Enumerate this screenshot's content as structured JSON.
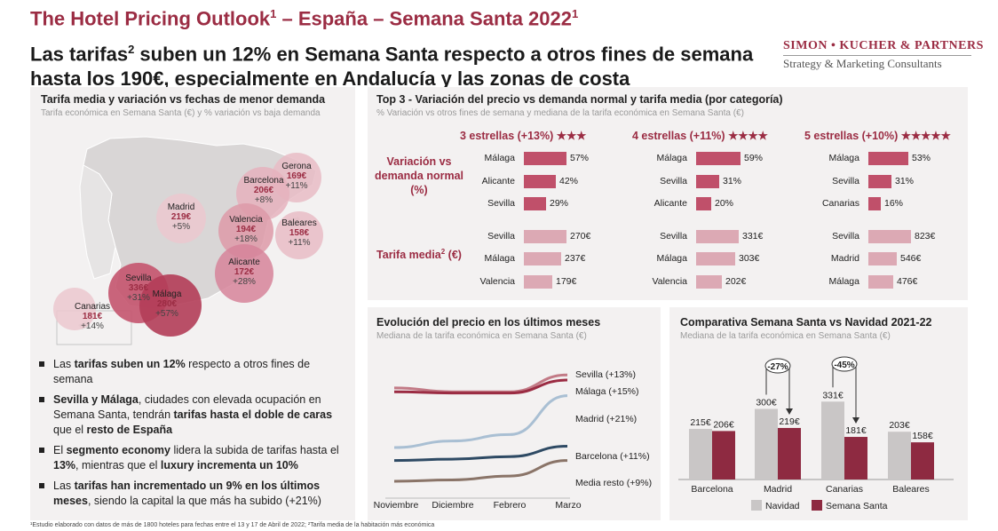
{
  "header": {
    "title_main": "The Hotel Pricing Outlook",
    "title_sup1": "1",
    "title_rest": " – España – Semana Santa 2022",
    "title_sup2": "1",
    "subtitle_part1": "Las tarifas",
    "subtitle_sup": "2",
    "subtitle_part2": " suben un 12% en Semana Santa respecto a otros fines de semana hasta los 190€, especialmente en Andalucía y las zonas de costa",
    "logo_line1": "SIMON • KUCHER & PARTNERS",
    "logo_line2": "Strategy & Marketing Consultants"
  },
  "map_panel": {
    "title": "Tarifa media y variación vs fechas de menor demanda",
    "subtitle": "Tarifa económica en Semana Santa (€) y % variación vs baja demanda",
    "cities": [
      {
        "name": "Gerona",
        "price": "169€",
        "var": "+11%"
      },
      {
        "name": "Barcelona",
        "price": "206€",
        "var": "+8%"
      },
      {
        "name": "Madrid",
        "price": "219€",
        "var": "+5%"
      },
      {
        "name": "Valencia",
        "price": "194€",
        "var": "+18%"
      },
      {
        "name": "Baleares",
        "price": "158€",
        "var": "+11%"
      },
      {
        "name": "Alicante",
        "price": "172€",
        "var": "+28%"
      },
      {
        "name": "Sevilla",
        "price": "336€",
        "var": "+31%"
      },
      {
        "name": "Málaga",
        "price": "280€",
        "var": "+57%"
      },
      {
        "name": "Canarias",
        "price": "181€",
        "var": "+14%"
      }
    ]
  },
  "bullets": [
    [
      {
        "t": "Las ",
        "b": false
      },
      {
        "t": "tarifas",
        "b": true
      },
      {
        "t": " ",
        "b": false
      },
      {
        "t": "suben un 12%",
        "b": true
      },
      {
        "t": " respecto a otros fines de semana",
        "b": false
      }
    ],
    [
      {
        "t": "Sevilla y Málaga",
        "b": true
      },
      {
        "t": ", ciudades con elevada ocupación en Semana Santa, tendrán ",
        "b": false
      },
      {
        "t": "tarifas hasta el doble de caras",
        "b": true
      },
      {
        "t": " que el ",
        "b": false
      },
      {
        "t": "resto de España",
        "b": true
      }
    ],
    [
      {
        "t": "El ",
        "b": false
      },
      {
        "t": "segmento economy",
        "b": true
      },
      {
        "t": " lidera la subida de tarifas hasta el ",
        "b": false
      },
      {
        "t": "13%",
        "b": true
      },
      {
        "t": ", mientras que el ",
        "b": false
      },
      {
        "t": "luxury incrementa un 10%",
        "b": true
      }
    ],
    [
      {
        "t": "Las ",
        "b": false
      },
      {
        "t": "tarifas han incrementado un 9% en los últimos meses",
        "b": true
      },
      {
        "t": ", siendo la capital la que más ha subido (+21%)",
        "b": false
      }
    ]
  ],
  "top3": {
    "title": "Top 3 - Variación del precio vs demanda normal y tarifa media (por categoría)",
    "subtitle": "% Variación vs otros fines de semana y mediana de la tarifa económica en Semana Santa (€)",
    "metric1": "Variación vs demanda normal (%)",
    "metric2_part1": "Tarifa media",
    "metric2_sup": "2",
    "metric2_part2": " (€)",
    "categories": [
      {
        "label": "3 estrellas (+13%)",
        "stars": "★★★",
        "variation": [
          {
            "city": "Málaga",
            "value": 57,
            "label": "57%"
          },
          {
            "city": "Alicante",
            "value": 42,
            "label": "42%"
          },
          {
            "city": "Sevilla",
            "value": 29,
            "label": "29%"
          }
        ],
        "rate": [
          {
            "city": "Sevilla",
            "value": 270,
            "label": "270€"
          },
          {
            "city": "Málaga",
            "value": 237,
            "label": "237€"
          },
          {
            "city": "Valencia",
            "value": 179,
            "label": "179€"
          }
        ]
      },
      {
        "label": "4 estrellas (+11%)",
        "stars": "★★★★",
        "variation": [
          {
            "city": "Málaga",
            "value": 59,
            "label": "59%"
          },
          {
            "city": "Sevilla",
            "value": 31,
            "label": "31%"
          },
          {
            "city": "Alicante",
            "value": 20,
            "label": "20%"
          }
        ],
        "rate": [
          {
            "city": "Sevilla",
            "value": 331,
            "label": "331€"
          },
          {
            "city": "Málaga",
            "value": 303,
            "label": "303€"
          },
          {
            "city": "Valencia",
            "value": 202,
            "label": "202€"
          }
        ]
      },
      {
        "label": "5 estrellas (+10%)",
        "stars": "★★★★★",
        "variation": [
          {
            "city": "Málaga",
            "value": 53,
            "label": "53%"
          },
          {
            "city": "Sevilla",
            "value": 31,
            "label": "31%"
          },
          {
            "city": "Canarias",
            "value": 16,
            "label": "16%"
          }
        ],
        "rate": [
          {
            "city": "Sevilla",
            "value": 823,
            "label": "823€"
          },
          {
            "city": "Madrid",
            "value": 546,
            "label": "546€"
          },
          {
            "city": "Málaga",
            "value": 476,
            "label": "476€"
          }
        ]
      }
    ]
  },
  "evolution": {
    "title": "Evolución del precio en los últimos meses",
    "subtitle": "Mediana de la tarifa económica en Semana Santa (€)",
    "x_labels": [
      "Noviembre",
      "Diciembre",
      "Febrero",
      "Marzo"
    ],
    "series": [
      {
        "name": "Sevilla (+13%)",
        "color": "#c27a86"
      },
      {
        "name": "Málaga (+15%)",
        "color": "#9b2c43"
      },
      {
        "name": "Madrid (+21%)",
        "color": "#a9bfd3"
      },
      {
        "name": "Barcelona (+11%)",
        "color": "#2e4a64"
      },
      {
        "name": "Media resto (+9%)",
        "color": "#8a7468"
      }
    ]
  },
  "comparison": {
    "title": "Comparativa Semana Santa vs Navidad 2021-22",
    "subtitle": "Mediana de la tarifa económica en Semana Santa (€)",
    "legend_navidad": "Navidad",
    "legend_ss": "Semana Santa",
    "color_navidad": "#c9c6c6",
    "color_ss": "#8e2a41"
  },
  "chart_data": [
    {
      "type": "bar",
      "title": "Comparativa Semana Santa vs Navidad 2021-22",
      "categories": [
        "Barcelona",
        "Madrid",
        "Canarias",
        "Baleares"
      ],
      "series": [
        {
          "name": "Navidad",
          "values": [
            215,
            300,
            331,
            203
          ],
          "labels": [
            "215€",
            "300€",
            "331€",
            "203€"
          ]
        },
        {
          "name": "Semana Santa",
          "values": [
            206,
            219,
            181,
            158
          ],
          "labels": [
            "206€",
            "219€",
            "181€",
            "158€"
          ]
        }
      ],
      "annotations": [
        {
          "category": "Madrid",
          "text": "-27%"
        },
        {
          "category": "Canarias",
          "text": "-45%"
        }
      ],
      "ylim": [
        0,
        360
      ]
    },
    {
      "type": "line",
      "title": "Evolución del precio en los últimos meses",
      "categories": [
        "Noviembre",
        "Diciembre",
        "Febrero",
        "Marzo"
      ],
      "series": [
        {
          "name": "Sevilla (+13%)",
          "values": [
            0.83,
            0.8,
            0.8,
            0.93
          ]
        },
        {
          "name": "Málaga (+15%)",
          "values": [
            0.8,
            0.79,
            0.79,
            0.89
          ]
        },
        {
          "name": "Madrid (+21%)",
          "values": [
            0.37,
            0.42,
            0.47,
            0.77
          ]
        },
        {
          "name": "Barcelona (+11%)",
          "values": [
            0.27,
            0.28,
            0.3,
            0.38
          ]
        },
        {
          "name": "Media resto (+9%)",
          "values": [
            0.11,
            0.12,
            0.15,
            0.27
          ]
        }
      ],
      "ylim": [
        0,
        1
      ]
    }
  ],
  "footnote": "¹Estudio elaborado con datos de más de 1800 hoteles para fechas entre el 13 y 17 de Abril de 2022; ²Tarifa media de la habitación más económica"
}
